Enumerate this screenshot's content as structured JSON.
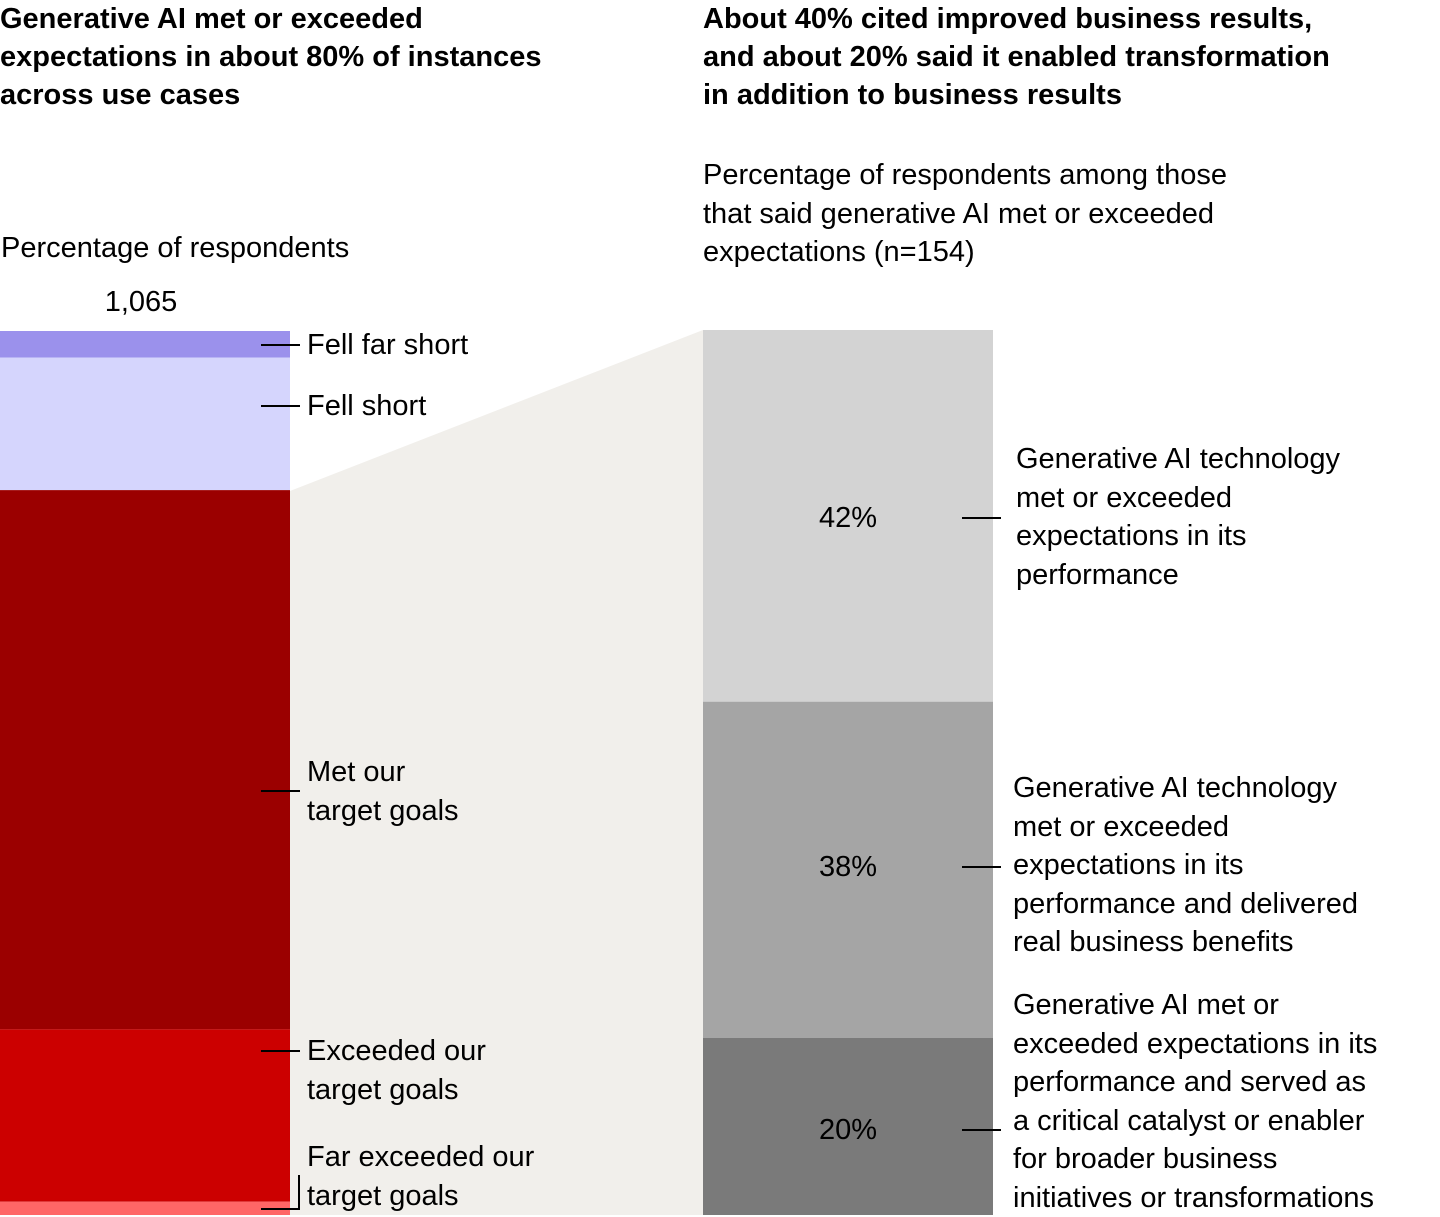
{
  "left": {
    "title": "Generative AI met or exceeded\nexpectations in about 80% of instances\nacross use cases",
    "subtitle": "Percentage of respondents",
    "n_label": "1,065"
  },
  "right": {
    "title": "About 40% cited improved business results,\nand about 20% said it enabled transformation\nin addition to business results",
    "subtitle": "Percentage of respondents among those\nthat said generative AI met or exceeded\nexpectations (n=154)"
  },
  "colors": {
    "fell_far_short": "#9b91ec",
    "fell_short": "#d5d5fd",
    "met": "#9b0000",
    "exceeded": "#cc0000",
    "far_exceeded": "#ff6666",
    "connector": "#f1efeb",
    "bar42": "#d3d3d3",
    "bar38": "#a5a5a5",
    "bar20": "#7a7a7a"
  },
  "chart_data": [
    {
      "type": "bar",
      "stacked": true,
      "title": "Generative AI met or exceeded expectations in about 80% of instances across use cases",
      "ylabel": "Percentage of respondents",
      "n": "1,065",
      "segments_top_to_bottom": [
        {
          "name": "Fell far short",
          "value": 3
        },
        {
          "name": "Fell short",
          "value": 15
        },
        {
          "name": "Met our target goals",
          "value": 61
        },
        {
          "name": "Exceeded our target goals",
          "value": 19.5
        },
        {
          "name": "Far exceeded our target goals",
          "value": 1.5
        }
      ]
    },
    {
      "type": "bar",
      "stacked": true,
      "title": "About 40% cited improved business results, and about 20% said it enabled transformation in addition to business results",
      "ylabel": "Percentage of respondents among those that said generative AI met or exceeded expectations (n=154)",
      "segments_top_to_bottom": [
        {
          "name": "Generative AI technology met or exceeded expectations in its performance",
          "value": 42,
          "label": "42%"
        },
        {
          "name": "Generative AI technology met or exceeded expectations in its performance and delivered real business benefits",
          "value": 38,
          "label": "38%"
        },
        {
          "name": "Generative AI met or exceeded expectations in its performance and served as a critical catalyst or enabler for broader business initiatives or transformations",
          "value": 20,
          "label": "20%"
        }
      ]
    }
  ],
  "labels": {
    "fell_far_short": "Fell far short",
    "fell_short": "Fell short",
    "met": "Met our\ntarget goals",
    "exceeded": "Exceeded our\ntarget goals",
    "far_exceeded": "Far exceeded our\ntarget goals",
    "r42": "Generative AI technology\nmet or exceeded\nexpectations in its\nperformance",
    "r38": "Generative AI technology\nmet or exceeded\nexpectations in its\nperformance and delivered\nreal business benefits",
    "r20": "Generative AI met or\nexceeded expectations in its\nperformance and served as\na critical catalyst or enabler\nfor broader business\ninitiatives or transformations"
  }
}
